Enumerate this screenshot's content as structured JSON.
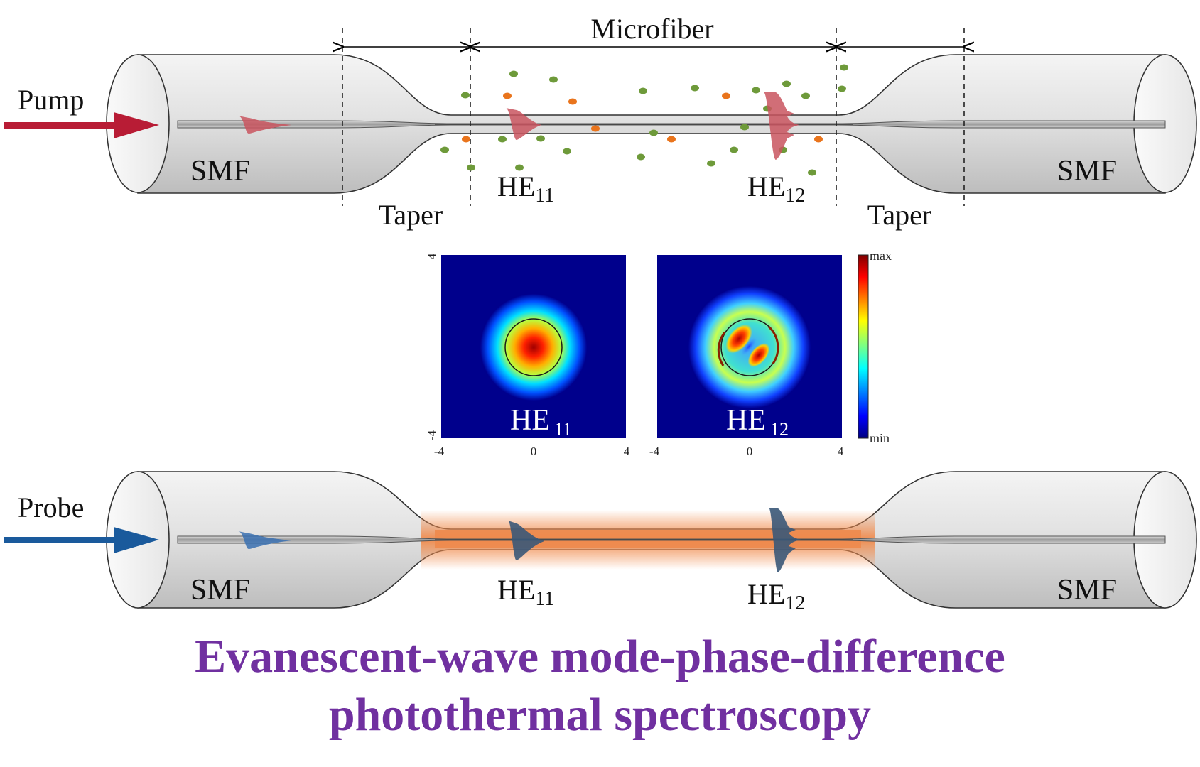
{
  "top": {
    "source_label": "Pump",
    "left_fiber_label": "SMF",
    "right_fiber_label": "SMF",
    "microfiber_label": "Microfiber",
    "taper_left_label": "Taper",
    "taper_right_label": "Taper",
    "mode1": {
      "base": "HE",
      "sub": "11"
    },
    "mode2": {
      "base": "HE",
      "sub": "12"
    }
  },
  "mode_maps": {
    "left": {
      "base": "HE",
      "sub": "11"
    },
    "right": {
      "base": "HE",
      "sub": "12"
    },
    "ticks": {
      "x_min": "-4",
      "x_mid": "0",
      "x_max": "4",
      "y_max": "4",
      "y_min": "-4"
    },
    "colorbar": {
      "max_label": "max",
      "min_label": "min"
    }
  },
  "bottom": {
    "source_label": "Probe",
    "left_fiber_label": "SMF",
    "right_fiber_label": "SMF",
    "mode1": {
      "base": "HE",
      "sub": "11"
    },
    "mode2": {
      "base": "HE",
      "sub": "12"
    }
  },
  "title": {
    "line1": "Evanescent-wave mode-phase-difference",
    "line2": "photothermal spectroscopy"
  },
  "colors": {
    "pump": "#b81c35",
    "probe": "#1a5a9c",
    "green_particle": "#6e9a3a",
    "orange_particle": "#e9741c",
    "heat_glow": "#f08a4b",
    "title": "#7030a0"
  }
}
